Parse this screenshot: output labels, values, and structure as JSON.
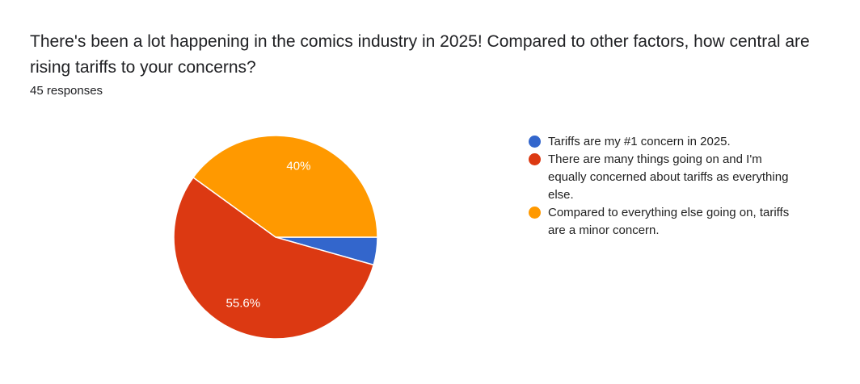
{
  "chart_data": {
    "type": "pie",
    "title": "There's been a lot happening in the comics industry in 2025! Compared to other factors, how central are rising tariffs to your concerns?",
    "subtitle": "45 responses",
    "categories": [
      "Tariffs are my #1 concern in 2025.",
      "There are many things going on and I'm equally concerned about tariffs as everything else.",
      "Compared to everything else going on, tariffs are a minor concern."
    ],
    "values": [
      4.4,
      55.6,
      40
    ],
    "value_labels": [
      null,
      "55.6%",
      "40%"
    ],
    "colors": [
      "#3366cc",
      "#dc3912",
      "#ff9900"
    ],
    "legend": "right"
  }
}
